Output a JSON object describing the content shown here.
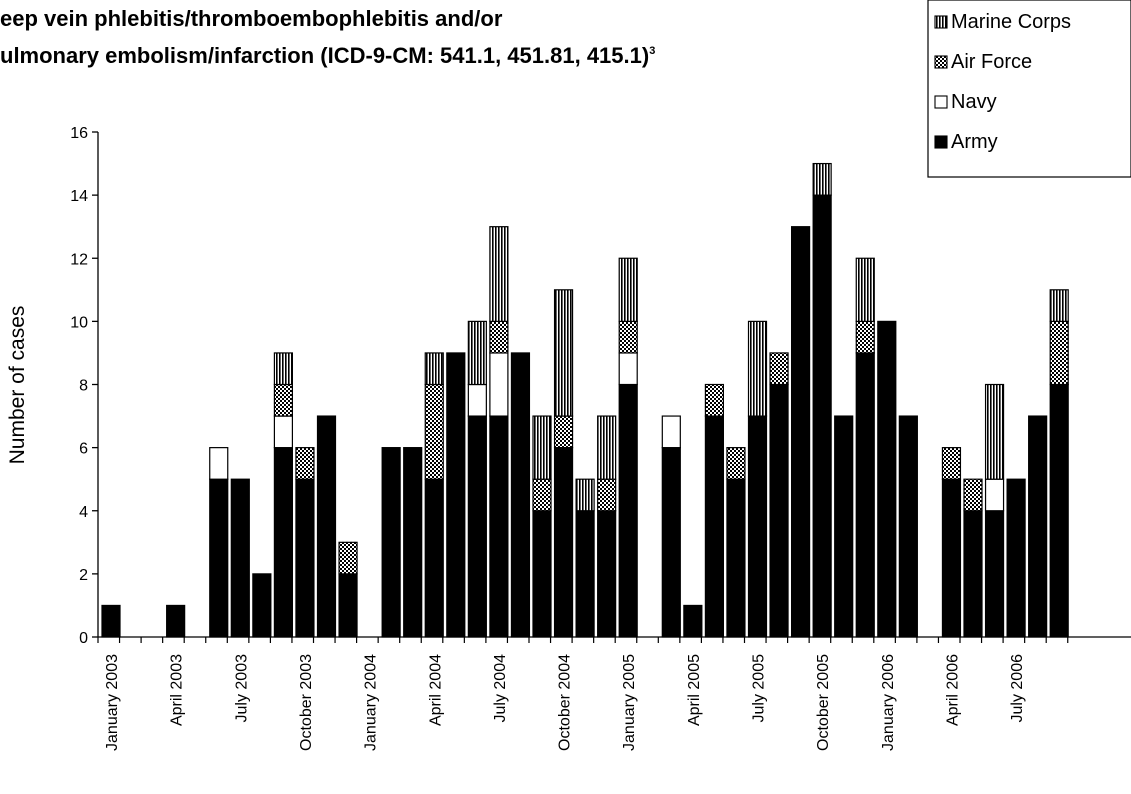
{
  "header": {
    "title_line1": "eep vein phlebitis/thromboembophlebitis and/or",
    "title_line2": "ulmonary embolism/infarction (ICD-9-CM: 541.1, 451.81, 415.1)",
    "title_superscript": "3"
  },
  "chart_data": {
    "type": "bar",
    "stacked": true,
    "ylabel": "Number of cases",
    "xlabel": "",
    "ylim": [
      0,
      16
    ],
    "yticks": [
      0,
      2,
      4,
      6,
      8,
      10,
      12,
      14,
      16
    ],
    "grid": false,
    "legend_position": "top-right",
    "categories": [
      "2003-01",
      "2003-02",
      "2003-03",
      "2003-04",
      "2003-05",
      "2003-06",
      "2003-07",
      "2003-08",
      "2003-09",
      "2003-10",
      "2003-11",
      "2003-12",
      "2004-01",
      "2004-02",
      "2004-03",
      "2004-04",
      "2004-05",
      "2004-06",
      "2004-07",
      "2004-08",
      "2004-09",
      "2004-10",
      "2004-11",
      "2004-12",
      "2005-01",
      "2005-02",
      "2005-03",
      "2005-04",
      "2005-05",
      "2005-06",
      "2005-07",
      "2005-08",
      "2005-09",
      "2005-10",
      "2005-11",
      "2005-12",
      "2006-01",
      "2006-02",
      "2006-03",
      "2006-04",
      "2006-05",
      "2006-06",
      "2006-07",
      "2006-08",
      "2006-09"
    ],
    "tick_labels": [
      {
        "index": 0,
        "label": "January 2003"
      },
      {
        "index": 3,
        "label": "April 2003"
      },
      {
        "index": 6,
        "label": "July 2003"
      },
      {
        "index": 9,
        "label": "October 2003"
      },
      {
        "index": 12,
        "label": "January 2004"
      },
      {
        "index": 15,
        "label": "April 2004"
      },
      {
        "index": 18,
        "label": "July 2004"
      },
      {
        "index": 21,
        "label": "October 2004"
      },
      {
        "index": 24,
        "label": "January 2005"
      },
      {
        "index": 27,
        "label": "April 2005"
      },
      {
        "index": 30,
        "label": "July 2005"
      },
      {
        "index": 33,
        "label": "October 2005"
      },
      {
        "index": 36,
        "label": "January 2006"
      },
      {
        "index": 39,
        "label": "April 2006"
      },
      {
        "index": 42,
        "label": "July 2006"
      }
    ],
    "series": [
      {
        "name": "Army",
        "pattern": "solid",
        "color": "#000000",
        "values": [
          1,
          0,
          0,
          1,
          0,
          5,
          5,
          2,
          6,
          5,
          7,
          2,
          0,
          6,
          6,
          5,
          9,
          7,
          7,
          9,
          4,
          6,
          4,
          4,
          8,
          0,
          6,
          1,
          7,
          5,
          7,
          8,
          13,
          14,
          7,
          9,
          10,
          7,
          0,
          5,
          4,
          4,
          5,
          7,
          8
        ]
      },
      {
        "name": "Navy",
        "pattern": "white",
        "color": "#ffffff",
        "values": [
          0,
          0,
          0,
          0,
          0,
          1,
          0,
          0,
          1,
          0,
          0,
          0,
          0,
          0,
          0,
          0,
          0,
          1,
          2,
          0,
          0,
          0,
          0,
          0,
          1,
          0,
          1,
          0,
          0,
          0,
          0,
          0,
          0,
          0,
          0,
          0,
          0,
          0,
          0,
          0,
          0,
          1,
          0,
          0,
          0
        ]
      },
      {
        "name": "Air Force",
        "pattern": "crosshatch",
        "color": "#888888",
        "values": [
          0,
          0,
          0,
          0,
          0,
          0,
          0,
          0,
          1,
          1,
          0,
          1,
          0,
          0,
          0,
          3,
          0,
          0,
          1,
          0,
          1,
          1,
          0,
          1,
          1,
          0,
          0,
          0,
          1,
          1,
          0,
          1,
          0,
          0,
          0,
          1,
          0,
          0,
          0,
          1,
          1,
          0,
          0,
          0,
          2
        ]
      },
      {
        "name": "Marine Corps",
        "pattern": "vertical-lines",
        "color": "#555555",
        "values": [
          0,
          0,
          0,
          0,
          0,
          0,
          0,
          0,
          1,
          0,
          0,
          0,
          0,
          0,
          0,
          1,
          0,
          2,
          3,
          0,
          2,
          4,
          1,
          2,
          2,
          0,
          0,
          0,
          0,
          0,
          3,
          0,
          0,
          1,
          0,
          2,
          0,
          0,
          0,
          0,
          0,
          3,
          0,
          0,
          1
        ]
      }
    ]
  },
  "legend": {
    "items": [
      "Marine Corps",
      "Air Force",
      "Navy",
      "Army"
    ]
  }
}
